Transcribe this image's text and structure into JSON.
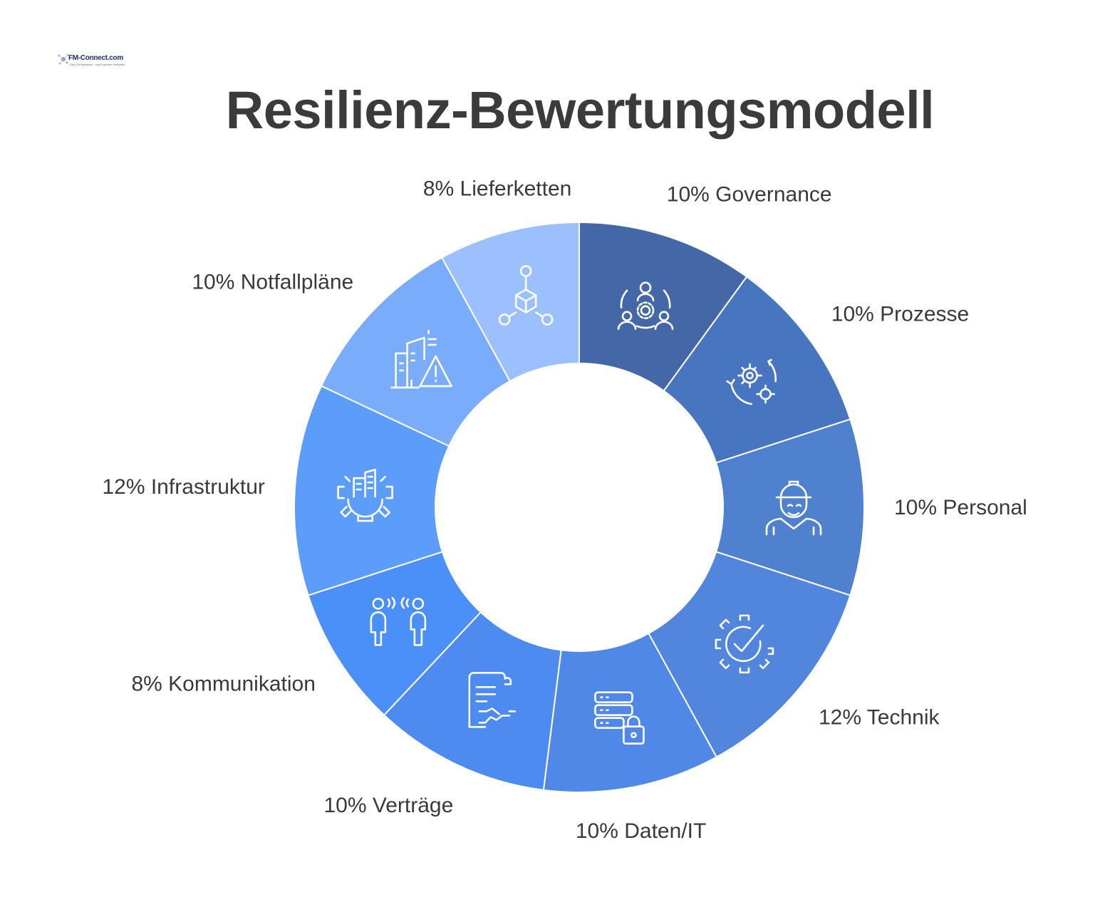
{
  "logo": {
    "text": "FM-Connect.com",
    "tagline": "Das FM-Netzwerk · und Experten-Netzwerk"
  },
  "title": "Resilienz-Bewertungsmodell",
  "chart_data": {
    "type": "pie",
    "donut": true,
    "title": "Resilienz-Bewertungsmodell",
    "unit": "%",
    "slices": [
      {
        "label": "Governance",
        "value": 10,
        "color": "#4468a7",
        "icon": "governance-icon"
      },
      {
        "label": "Prozesse",
        "value": 10,
        "color": "#4875bf",
        "icon": "process-gears-icon"
      },
      {
        "label": "Personal",
        "value": 10,
        "color": "#4f81cf",
        "icon": "worker-icon"
      },
      {
        "label": "Technik",
        "value": 12,
        "color": "#5186dc",
        "icon": "gear-check-icon"
      },
      {
        "label": "Daten/IT",
        "value": 10,
        "color": "#4f88e6",
        "icon": "server-lock-icon"
      },
      {
        "label": "Verträge",
        "value": 10,
        "color": "#4e8bf0",
        "icon": "contract-handshake-icon"
      },
      {
        "label": "Kommunikation",
        "value": 8,
        "color": "#4b8ff8",
        "icon": "communication-icon"
      },
      {
        "label": "Infrastruktur",
        "value": 12,
        "color": "#5c9cfb",
        "icon": "infrastructure-icon"
      },
      {
        "label": "Notfallpläne",
        "value": 10,
        "color": "#7aacfc",
        "icon": "building-warning-icon"
      },
      {
        "label": "Lieferketten",
        "value": 8,
        "color": "#9bc0fd",
        "icon": "supply-chain-icon"
      }
    ]
  }
}
